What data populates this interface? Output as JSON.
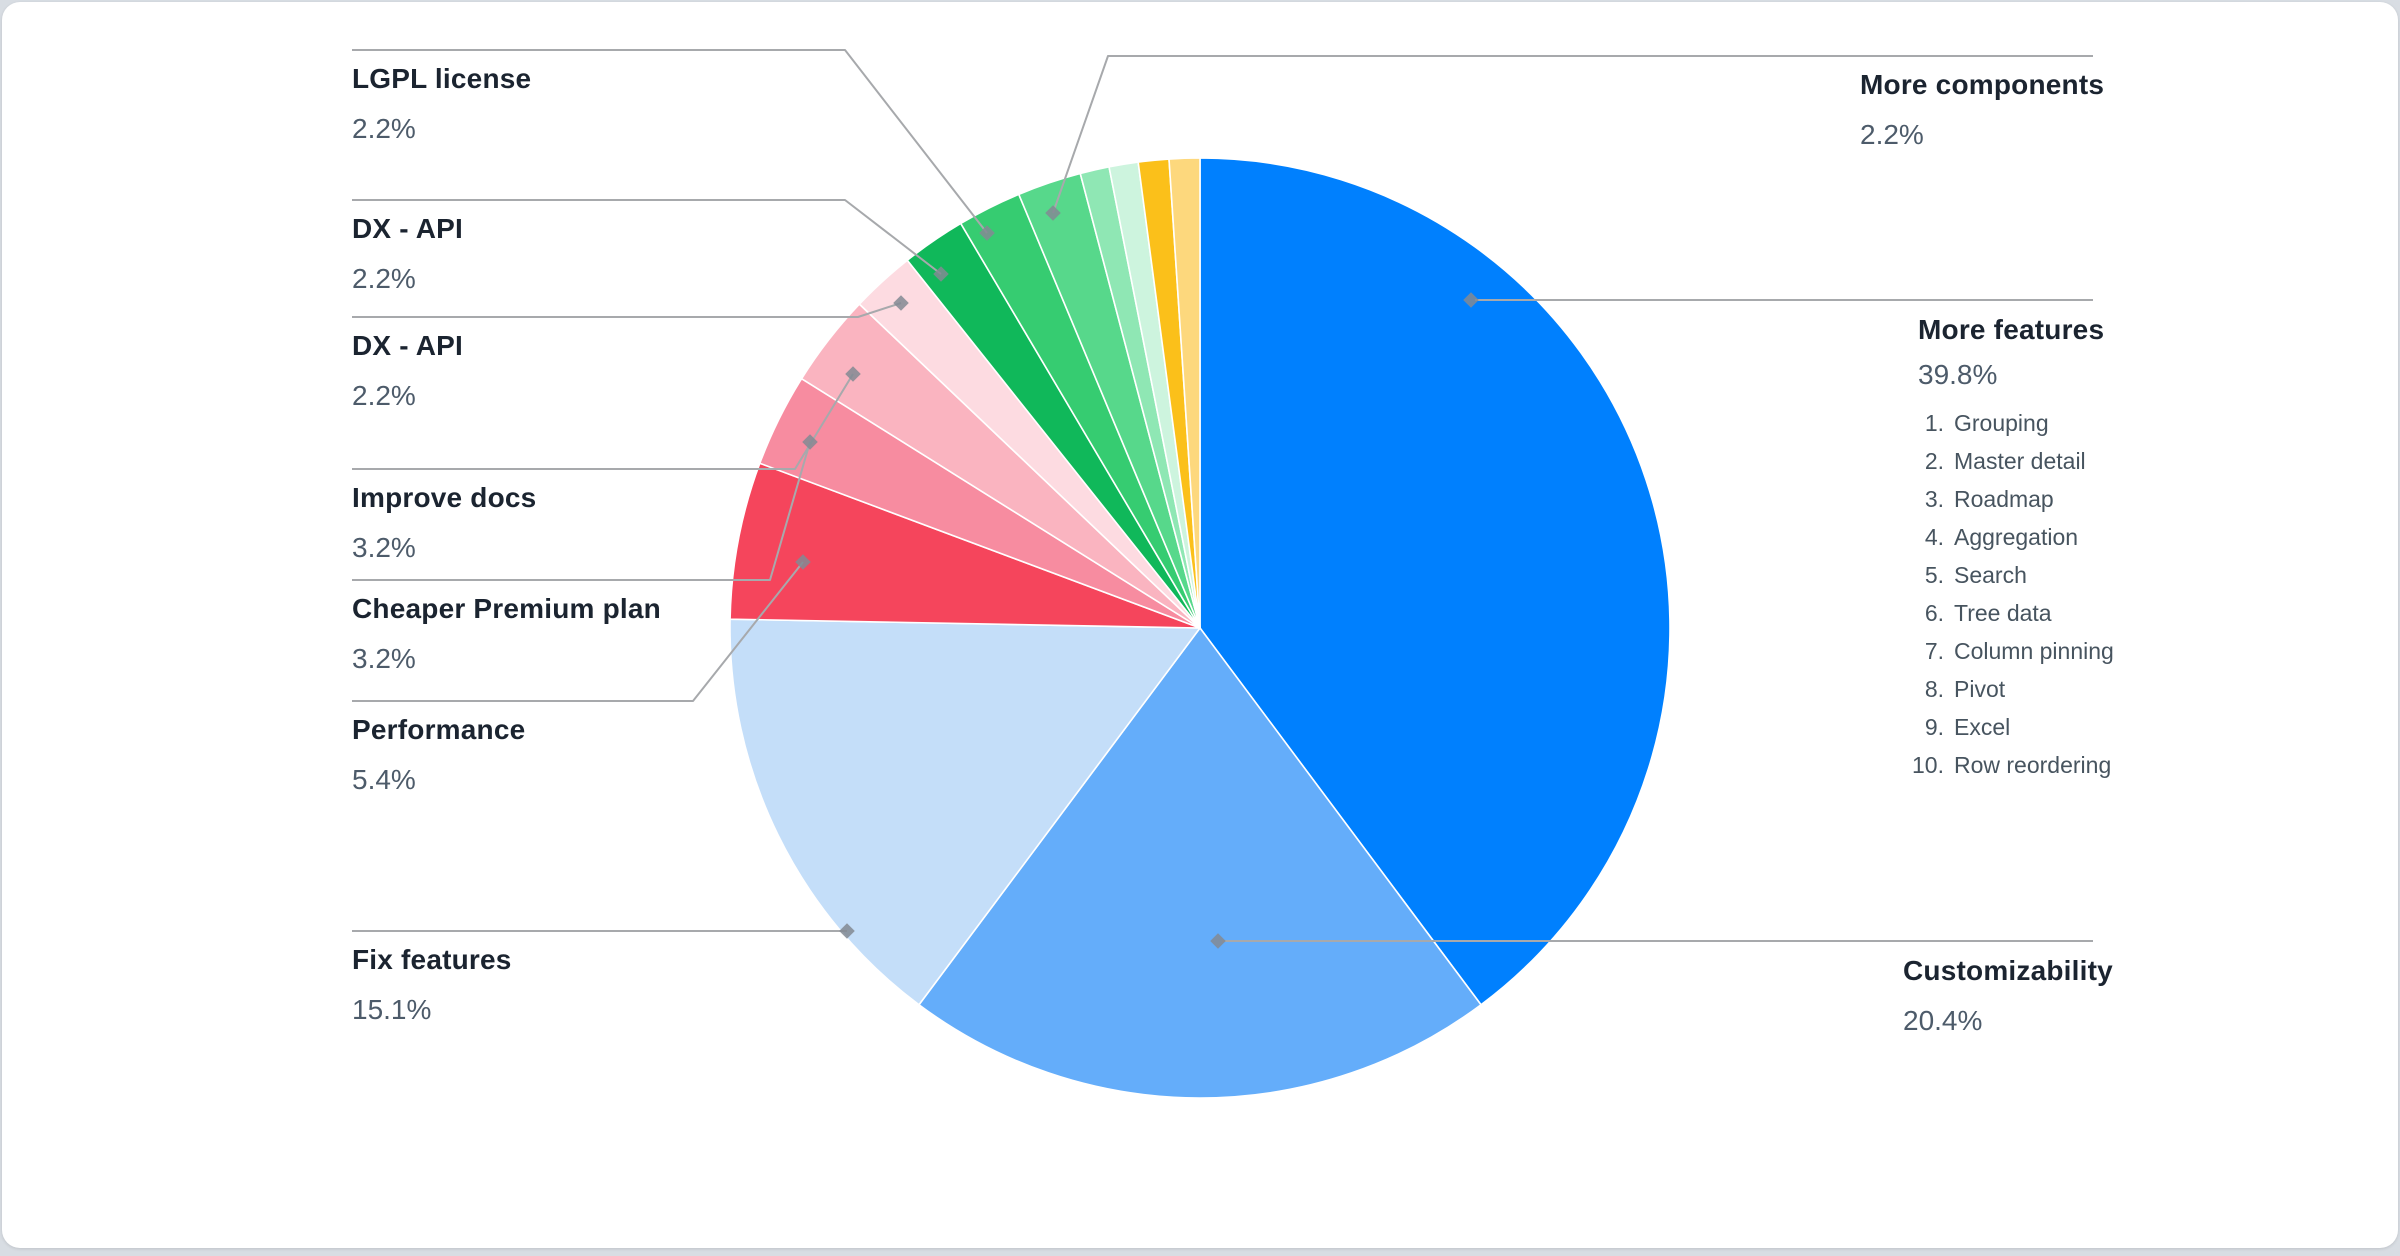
{
  "chart_data": {
    "type": "pie",
    "title": "",
    "legend_position": "callout-labels",
    "start_angle_deg": 0,
    "direction": "clockwise",
    "value_unit": "%",
    "slices": [
      {
        "label": "More features",
        "value": 39.8,
        "color": "#0080FE"
      },
      {
        "label": "Customizability",
        "value": 20.4,
        "color": "#64ADFA"
      },
      {
        "label": "Fix features",
        "value": 15.1,
        "color": "#C4DEF9"
      },
      {
        "label": "Performance",
        "value": 5.4,
        "color": "#F5455C"
      },
      {
        "label": "Cheaper Premium plan",
        "value": 3.2,
        "color": "#F78CA0"
      },
      {
        "label": "Improve docs",
        "value": 3.2,
        "color": "#FAB4C0"
      },
      {
        "label": "DX - API",
        "value": 2.2,
        "color": "#FDDBE1"
      },
      {
        "label": "DX - API",
        "value": 2.2,
        "color": "#10B85A"
      },
      {
        "label": "LGPL license",
        "value": 2.2,
        "color": "#36CC71"
      },
      {
        "label": "More components",
        "value": 2.2,
        "color": "#57D88B"
      },
      {
        "label": "",
        "value": 1.0,
        "color": "#8FE7B4"
      },
      {
        "label": "",
        "value": 1.0,
        "color": "#CDF4DE"
      },
      {
        "label": "",
        "value": 1.05,
        "color": "#FBC01A"
      },
      {
        "label": "",
        "value": 1.05,
        "color": "#FDD87D"
      }
    ]
  },
  "callouts": {
    "left": [
      {
        "title": "LGPL license",
        "value": "2.2%"
      },
      {
        "title": "DX - API",
        "value": "2.2%"
      },
      {
        "title": "DX - API",
        "value": "2.2%"
      },
      {
        "title": "Improve docs",
        "value": "3.2%"
      },
      {
        "title": "Cheaper Premium plan",
        "value": "3.2%"
      },
      {
        "title": "Performance",
        "value": "5.4%"
      },
      {
        "title": "Fix features",
        "value": "15.1%"
      }
    ],
    "right": [
      {
        "title": "More components",
        "value": "2.2%"
      },
      {
        "title": "More features",
        "value": "39.8%",
        "items": [
          "Grouping",
          "Master detail",
          "Roadmap",
          "Aggregation",
          "Search",
          "Tree data",
          "Column pinning",
          "Pivot",
          "Excel",
          "Row reordering"
        ]
      },
      {
        "title": "Customizability",
        "value": "20.4%"
      }
    ]
  }
}
